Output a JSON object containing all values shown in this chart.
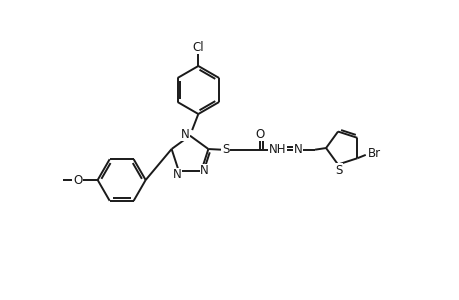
{
  "background_color": "#ffffff",
  "line_color": "#1a1a1a",
  "line_width": 1.4,
  "font_size": 8.5,
  "figsize": [
    4.6,
    3.0
  ],
  "dpi": 100,
  "xlim": [
    -1.5,
    11.0
  ],
  "ylim": [
    -0.5,
    8.5
  ]
}
